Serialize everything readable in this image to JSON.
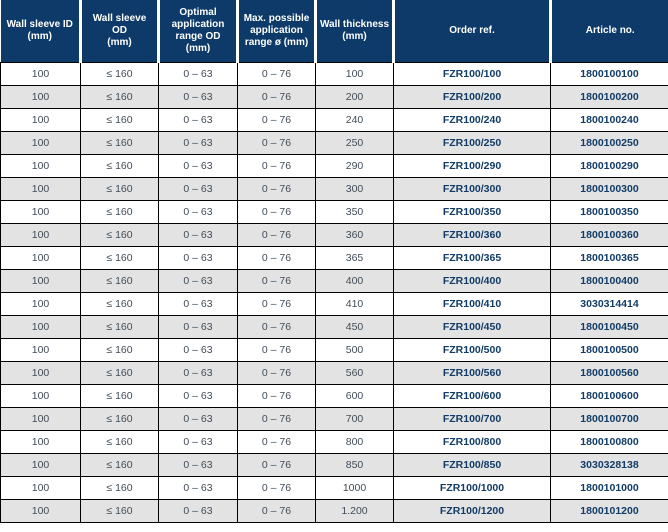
{
  "table": {
    "column_headers": [
      "Wall sleeve ID\n(mm)",
      "Wall sleeve OD\n(mm)",
      "Optimal\napplication\nrange OD\n(mm)",
      "Max. possible\napplication\nrange ø (mm)",
      "Wall thickness\n(mm)",
      "Order ref.",
      "Article no."
    ],
    "rows": [
      [
        "100",
        "≤ 160",
        "0 – 63",
        "0 – 76",
        "100",
        "FZR100/100",
        "1800100100"
      ],
      [
        "100",
        "≤ 160",
        "0 – 63",
        "0 – 76",
        "200",
        "FZR100/200",
        "1800100200"
      ],
      [
        "100",
        "≤ 160",
        "0 – 63",
        "0 – 76",
        "240",
        "FZR100/240",
        "1800100240"
      ],
      [
        "100",
        "≤ 160",
        "0 – 63",
        "0 – 76",
        "250",
        "FZR100/250",
        "1800100250"
      ],
      [
        "100",
        "≤ 160",
        "0 – 63",
        "0 – 76",
        "290",
        "FZR100/290",
        "1800100290"
      ],
      [
        "100",
        "≤ 160",
        "0 – 63",
        "0 – 76",
        "300",
        "FZR100/300",
        "1800100300"
      ],
      [
        "100",
        "≤ 160",
        "0 – 63",
        "0 – 76",
        "350",
        "FZR100/350",
        "1800100350"
      ],
      [
        "100",
        "≤ 160",
        "0 – 63",
        "0 – 76",
        "360",
        "FZR100/360",
        "1800100360"
      ],
      [
        "100",
        "≤ 160",
        "0 – 63",
        "0 – 76",
        "365",
        "FZR100/365",
        "1800100365"
      ],
      [
        "100",
        "≤ 160",
        "0 – 63",
        "0 – 76",
        "400",
        "FZR100/400",
        "1800100400"
      ],
      [
        "100",
        "≤ 160",
        "0 – 63",
        "0 – 76",
        "410",
        "FZR100/410",
        "3030314414"
      ],
      [
        "100",
        "≤ 160",
        "0 – 63",
        "0 – 76",
        "450",
        "FZR100/450",
        "1800100450"
      ],
      [
        "100",
        "≤ 160",
        "0 – 63",
        "0 – 76",
        "500",
        "FZR100/500",
        "1800100500"
      ],
      [
        "100",
        "≤ 160",
        "0 – 63",
        "0 – 76",
        "560",
        "FZR100/560",
        "1800100560"
      ],
      [
        "100",
        "≤ 160",
        "0 – 63",
        "0 – 76",
        "600",
        "FZR100/600",
        "1800100600"
      ],
      [
        "100",
        "≤ 160",
        "0 – 63",
        "0 – 76",
        "700",
        "FZR100/700",
        "1800100700"
      ],
      [
        "100",
        "≤ 160",
        "0 – 63",
        "0 – 76",
        "800",
        "FZR100/800",
        "1800100800"
      ],
      [
        "100",
        "≤ 160",
        "0 – 63",
        "0 – 76",
        "850",
        "FZR100/850",
        "3030328138"
      ],
      [
        "100",
        "≤ 160",
        "0 – 63",
        "0 – 76",
        "1000",
        "FZR100/1000",
        "1800101000"
      ],
      [
        "100",
        "≤ 160",
        "0 – 63",
        "0 – 76",
        "1.200",
        "FZR100/1200",
        "1800101200"
      ]
    ]
  },
  "colors": {
    "header_bg": "#0d3a68",
    "header_text": "#ffffff",
    "alt_row_bg": "#e3e3e3",
    "body_text": "#414d59",
    "accent_text": "#123c67",
    "grid_border": "#000000"
  }
}
